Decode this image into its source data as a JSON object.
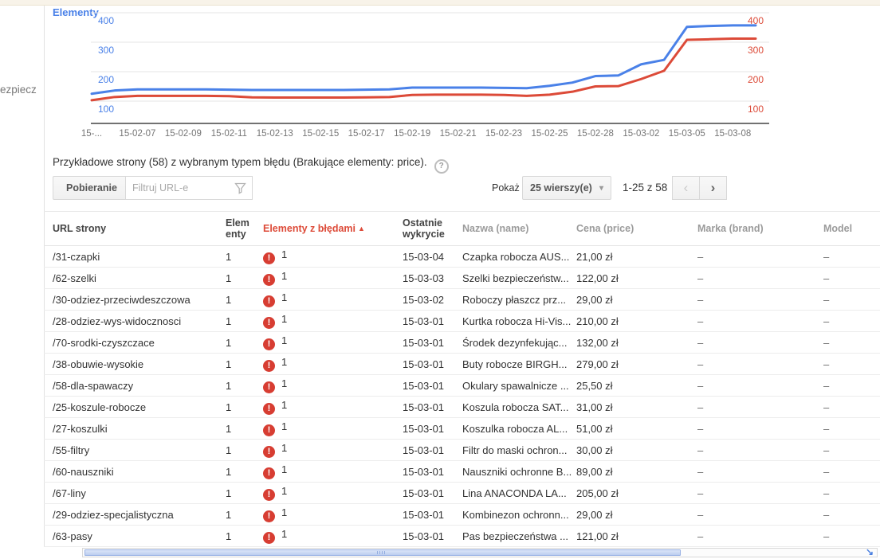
{
  "sidebar": {
    "partial_item_label": "ezpiecz"
  },
  "chart_data": {
    "type": "line",
    "title": "Elementy",
    "x_labels": [
      "15-...",
      "15-02-07",
      "15-02-09",
      "15-02-11",
      "15-02-13",
      "15-02-15",
      "15-02-17",
      "15-02-19",
      "15-02-21",
      "15-02-23",
      "15-02-25",
      "15-02-28",
      "15-03-02",
      "15-03-05",
      "15-03-08"
    ],
    "y_ticks": [
      400,
      300,
      200,
      100
    ],
    "ylim": [
      100,
      400
    ],
    "grid": true,
    "series": [
      {
        "name": "Elementy",
        "color": "#4a81e8",
        "values": [
          125,
          136,
          140,
          140,
          140,
          140,
          139,
          138,
          138,
          138,
          138,
          138,
          139,
          140,
          146,
          146,
          146,
          146,
          145,
          144,
          152,
          163,
          185,
          187,
          225,
          240,
          352,
          355,
          357,
          357
        ]
      },
      {
        "name": "Elementy z błędami",
        "color": "#dc4a38",
        "values": [
          103,
          114,
          118,
          118,
          118,
          118,
          117,
          113,
          112,
          112,
          112,
          112,
          113,
          114,
          121,
          122,
          122,
          122,
          121,
          118,
          122,
          132,
          150,
          151,
          175,
          203,
          308,
          310,
          312,
          312
        ]
      }
    ]
  },
  "caption": {
    "text": "Przykładowe strony (58) z wybranym typem błędu (Brakujące elementy: price).",
    "help_icon": "?"
  },
  "toolbar": {
    "download_label": "Pobieranie",
    "filter_placeholder": "Filtruj URL-e"
  },
  "pagination": {
    "show_label": "Pokaż",
    "rows_option": "25 wierszy(e)",
    "dropdown_arrow": "▾",
    "range": "1-25 z 58",
    "prev_icon": "‹",
    "next_icon": "›"
  },
  "table": {
    "headers": [
      "URL strony",
      "Elementy",
      "Elementy z błędami",
      "Ostatnie wykrycie",
      "Nazwa (name)",
      "Cena (price)",
      "Marka (brand)",
      "Model"
    ],
    "sort_arrow": "▲",
    "rows": [
      {
        "url": "/31-czapki",
        "elements": "1",
        "errors": "1",
        "detected": "15-03-04",
        "name": "Czapka robocza AUS...",
        "price": "21,00 zł",
        "brand": "–",
        "model": "–"
      },
      {
        "url": "/62-szelki",
        "elements": "1",
        "errors": "1",
        "detected": "15-03-03",
        "name": "Szelki bezpieczeństw...",
        "price": "122,00 zł",
        "brand": "–",
        "model": "–"
      },
      {
        "url": "/30-odziez-przeciwdeszczowa",
        "elements": "1",
        "errors": "1",
        "detected": "15-03-02",
        "name": "Roboczy płaszcz prz...",
        "price": "29,00 zł",
        "brand": "–",
        "model": "–"
      },
      {
        "url": "/28-odziez-wys-widocznosci",
        "elements": "1",
        "errors": "1",
        "detected": "15-03-01",
        "name": "Kurtka robocza Hi-Vis...",
        "price": "210,00 zł",
        "brand": "–",
        "model": "–"
      },
      {
        "url": "/70-srodki-czyszczace",
        "elements": "1",
        "errors": "1",
        "detected": "15-03-01",
        "name": "Środek dezynfekując...",
        "price": "132,00 zł",
        "brand": "–",
        "model": "–"
      },
      {
        "url": "/38-obuwie-wysokie",
        "elements": "1",
        "errors": "1",
        "detected": "15-03-01",
        "name": "Buty robocze BIRGH...",
        "price": "279,00 zł",
        "brand": "–",
        "model": "–"
      },
      {
        "url": "/58-dla-spawaczy",
        "elements": "1",
        "errors": "1",
        "detected": "15-03-01",
        "name": "Okulary spawalnicze ...",
        "price": "25,50 zł",
        "brand": "–",
        "model": "–"
      },
      {
        "url": "/25-koszule-robocze",
        "elements": "1",
        "errors": "1",
        "detected": "15-03-01",
        "name": "Koszula robocza SAT...",
        "price": "31,00 zł",
        "brand": "–",
        "model": "–"
      },
      {
        "url": "/27-koszulki",
        "elements": "1",
        "errors": "1",
        "detected": "15-03-01",
        "name": "Koszulka robocza AL...",
        "price": "51,00 zł",
        "brand": "–",
        "model": "–"
      },
      {
        "url": "/55-filtry",
        "elements": "1",
        "errors": "1",
        "detected": "15-03-01",
        "name": "Filtr do maski ochron...",
        "price": "30,00 zł",
        "brand": "–",
        "model": "–"
      },
      {
        "url": "/60-nauszniki",
        "elements": "1",
        "errors": "1",
        "detected": "15-03-01",
        "name": "Nauszniki ochronne B...",
        "price": "89,00 zł",
        "brand": "–",
        "model": "–"
      },
      {
        "url": "/67-liny",
        "elements": "1",
        "errors": "1",
        "detected": "15-03-01",
        "name": "Lina ANACONDA LA...",
        "price": "205,00 zł",
        "brand": "–",
        "model": "–"
      },
      {
        "url": "/29-odziez-specjalistyczna",
        "elements": "1",
        "errors": "1",
        "detected": "15-03-01",
        "name": "Kombinezon ochronn...",
        "price": "29,00 zł",
        "brand": "–",
        "model": "–"
      },
      {
        "url": "/63-pasy",
        "elements": "1",
        "errors": "1",
        "detected": "15-03-01",
        "name": "Pas bezpieczeństwa ...",
        "price": "121,00 zł",
        "brand": "–",
        "model": "–"
      }
    ]
  },
  "icons": {
    "error": "!",
    "scroll_corner_arrow": "↘",
    "scrollbar_grip": "||||"
  },
  "colors": {
    "error_red": "#d73d32",
    "accent_blue": "#4a81e8",
    "series_red": "#dc4a38",
    "cream": "#f8f3e9"
  }
}
